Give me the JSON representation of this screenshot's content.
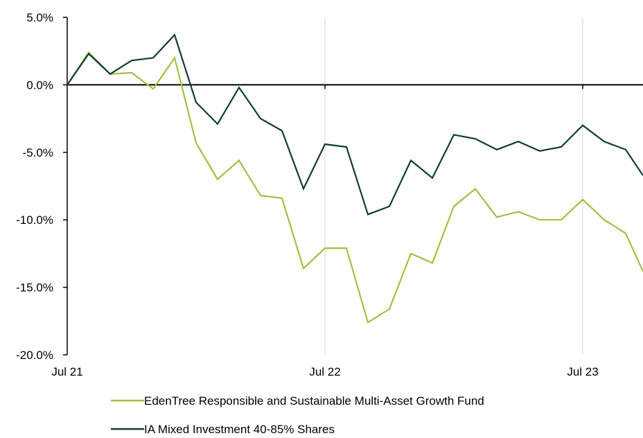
{
  "chart_data": {
    "type": "line",
    "title": "",
    "xlabel": "",
    "ylabel": "",
    "x_ticks": [
      {
        "label": "Jul 21",
        "month": 0
      },
      {
        "label": "Jul 22",
        "month": 12
      },
      {
        "label": "Jul 23",
        "month": 24
      }
    ],
    "y_ticks": [
      "5.0%",
      "0.0%",
      "-5.0%",
      "-10.0%",
      "-15.0%",
      "-20.0%"
    ],
    "y_tick_values": [
      5,
      0,
      -5,
      -10,
      -15,
      -20
    ],
    "ylim": [
      -20,
      5
    ],
    "xlim_months": [
      0,
      26.8
    ],
    "grid": "vertical",
    "legend_position": "bottom",
    "x_months": [
      0,
      1,
      2,
      3,
      4,
      5,
      6,
      7,
      8,
      9,
      10,
      11,
      12,
      13,
      14,
      15,
      16,
      17,
      18,
      19,
      20,
      21,
      22,
      23,
      24,
      25,
      26,
      26.8
    ],
    "series": [
      {
        "name": "EdenTree Responsible and Sustainable Multi-Asset Growth Fund",
        "color": "#9dc243",
        "values": [
          0.0,
          2.4,
          0.8,
          0.9,
          -0.3,
          2.0,
          -4.3,
          -7.0,
          -5.6,
          -8.2,
          -8.4,
          -13.6,
          -12.1,
          -12.1,
          -17.6,
          -16.6,
          -12.5,
          -13.2,
          -9.0,
          -7.7,
          -9.8,
          -9.4,
          -10.0,
          -10.0,
          -8.5,
          -10.0,
          -11.0,
          -13.8
        ]
      },
      {
        "name": "IA Mixed Investment 40-85% Shares",
        "color": "#0d3b34",
        "values": [
          0.0,
          2.3,
          0.8,
          1.8,
          2.0,
          3.7,
          -1.3,
          -2.9,
          -0.2,
          -2.5,
          -3.4,
          -7.7,
          -4.4,
          -4.6,
          -9.6,
          -9.0,
          -5.6,
          -6.9,
          -3.7,
          -4.0,
          -4.8,
          -4.2,
          -4.9,
          -4.6,
          -3.0,
          -4.2,
          -4.8,
          -6.7
        ]
      }
    ]
  }
}
